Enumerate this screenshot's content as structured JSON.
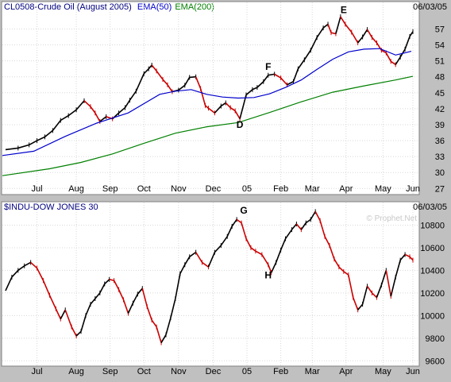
{
  "charts": [
    {
      "id": "top",
      "type": "line",
      "title_parts": [
        {
          "text": "CL0508-Crude Oil (August 2005)",
          "color": "#000080"
        },
        {
          "text": "EMA(50)",
          "color": "#0000cc"
        },
        {
          "text": "EMA(200)",
          "color": "#008000"
        }
      ],
      "date": "06/03/05",
      "watermark": "",
      "ylim": [
        26,
        62
      ],
      "y_ticks": [
        27,
        30,
        33,
        36,
        39,
        42,
        45,
        48,
        51,
        54,
        57
      ],
      "x_labels": [
        "Jul",
        "Aug",
        "Sep",
        "Oct",
        "Nov",
        "Dec",
        "05",
        "Feb",
        "Mar",
        "Apr",
        "May",
        "Jun"
      ],
      "x_label_pos": [
        44,
        94,
        137,
        180,
        224,
        268,
        311,
        354,
        394,
        437,
        484,
        522
      ],
      "x_domain": [
        0,
        522
      ],
      "price_color": "#000000",
      "down_color": "#cc0000",
      "series": [
        {
          "name": "Crude Oil",
          "x": [
            4,
            20,
            34,
            44,
            54,
            64,
            74,
            84,
            94,
            104,
            112,
            118,
            124,
            132,
            140,
            148,
            156,
            162,
            170,
            180,
            186,
            190,
            196,
            204,
            210,
            216,
            224,
            232,
            238,
            246,
            252,
            258,
            262,
            270,
            278,
            284,
            290,
            296,
            302,
            310,
            318,
            324,
            332,
            338,
            346,
            354,
            362,
            370,
            376,
            384,
            392,
            400,
            408,
            414,
            418,
            424,
            430,
            436,
            444,
            452,
            458,
            464,
            470,
            476,
            482,
            488,
            494,
            500,
            506,
            512,
            518,
            522
          ],
          "y": [
            34.3,
            34.6,
            35.2,
            36.0,
            36.7,
            37.9,
            39.8,
            40.7,
            41.8,
            43.5,
            42.4,
            41.2,
            39.6,
            40.5,
            40.1,
            41.2,
            42.2,
            43.6,
            45.3,
            48.6,
            49.5,
            50.2,
            49.1,
            47.5,
            46.5,
            45.2,
            45.5,
            46.4,
            47.9,
            48.0,
            45.8,
            42.6,
            42.1,
            41.2,
            42.5,
            43.1,
            42.2,
            41.6,
            40.1,
            44.6,
            45.6,
            46.0,
            47.1,
            48.3,
            48.5,
            47.8,
            46.5,
            47.1,
            49.5,
            51.2,
            53.0,
            55.4,
            57.2,
            57.9,
            56.3,
            56.1,
            59.3,
            57.9,
            56.4,
            54.4,
            55.5,
            56.9,
            55.4,
            54.4,
            53.0,
            52.5,
            50.9,
            50.3,
            51.7,
            53.2,
            55.6,
            56.5
          ]
        },
        {
          "name": "EMA(50)",
          "color": "#0000cc",
          "x": [
            0,
            40,
            80,
            120,
            160,
            200,
            220,
            240,
            260,
            280,
            300,
            320,
            340,
            360,
            380,
            400,
            420,
            440,
            460,
            480,
            500,
            520
          ],
          "y": [
            33.2,
            34.0,
            36.8,
            39.3,
            41.2,
            44.7,
            45.3,
            45.6,
            44.7,
            44.2,
            44.0,
            44.1,
            44.8,
            46.0,
            47.4,
            49.4,
            51.3,
            52.7,
            53.2,
            53.3,
            52.1,
            52.8
          ]
        },
        {
          "name": "EMA(200)",
          "color": "#008000",
          "x": [
            0,
            60,
            100,
            140,
            180,
            220,
            260,
            300,
            340,
            380,
            420,
            460,
            500,
            522
          ],
          "y": [
            29.4,
            30.7,
            31.9,
            33.5,
            35.5,
            37.4,
            38.6,
            39.4,
            41.3,
            43.3,
            45.1,
            46.3,
            47.4,
            48.1
          ]
        }
      ],
      "annotations": [
        {
          "text": "E",
          "x": 434,
          "y": 60.0
        },
        {
          "text": "F",
          "x": 338,
          "y": 49.3
        },
        {
          "text": "D",
          "x": 302,
          "y": 38.4
        }
      ]
    },
    {
      "id": "bottom",
      "type": "line",
      "title_parts": [
        {
          "text": "$INDU-DOW JONES 30",
          "color": "#000080"
        }
      ],
      "date": "06/03/05",
      "watermark": "© Prophet.Net",
      "ylim": [
        9560,
        11000
      ],
      "y_ticks": [
        9600,
        9800,
        10000,
        10200,
        10400,
        10600,
        10800
      ],
      "x_labels": [
        "Jul",
        "Aug",
        "Sep",
        "Oct",
        "Nov",
        "Dec",
        "05",
        "Feb",
        "Mar",
        "Apr",
        "May",
        "Jun"
      ],
      "x_label_pos": [
        44,
        94,
        137,
        180,
        224,
        268,
        311,
        354,
        394,
        437,
        484,
        522
      ],
      "x_domain": [
        0,
        522
      ],
      "price_color": "#000000",
      "down_color": "#cc0000",
      "series": [
        {
          "name": "Dow Jones",
          "x": [
            4,
            12,
            20,
            28,
            36,
            44,
            52,
            60,
            68,
            74,
            80,
            88,
            94,
            100,
            106,
            112,
            118,
            124,
            130,
            136,
            142,
            148,
            154,
            160,
            166,
            172,
            178,
            184,
            190,
            196,
            202,
            208,
            214,
            220,
            226,
            232,
            238,
            246,
            254,
            262,
            270,
            278,
            286,
            292,
            298,
            304,
            310,
            316,
            322,
            330,
            338,
            342,
            348,
            354,
            360,
            368,
            374,
            380,
            386,
            392,
            398,
            404,
            410,
            416,
            422,
            428,
            434,
            440,
            446,
            452,
            458,
            464,
            470,
            476,
            482,
            488,
            494,
            500,
            506,
            512,
            518,
            522
          ],
          "y": [
            10220,
            10340,
            10400,
            10440,
            10470,
            10420,
            10310,
            10180,
            10060,
            9970,
            10050,
            9900,
            9820,
            9860,
            10000,
            10100,
            10150,
            10200,
            10280,
            10320,
            10310,
            10230,
            10140,
            10020,
            10110,
            10190,
            10240,
            10080,
            9960,
            9900,
            9760,
            9830,
            9980,
            10150,
            10370,
            10450,
            10520,
            10560,
            10470,
            10430,
            10560,
            10620,
            10700,
            10790,
            10850,
            10820,
            10680,
            10600,
            10570,
            10540,
            10450,
            10380,
            10470,
            10580,
            10680,
            10760,
            10810,
            10760,
            10820,
            10850,
            10920,
            10840,
            10700,
            10620,
            10500,
            10430,
            10390,
            10360,
            10160,
            10050,
            10100,
            10260,
            10200,
            10160,
            10270,
            10400,
            10170,
            10340,
            10490,
            10540,
            10520,
            10490
          ]
        }
      ],
      "annotations": [
        {
          "text": "G",
          "x": 307,
          "y": 10900
        },
        {
          "text": "H",
          "x": 338,
          "y": 10330
        }
      ]
    }
  ]
}
